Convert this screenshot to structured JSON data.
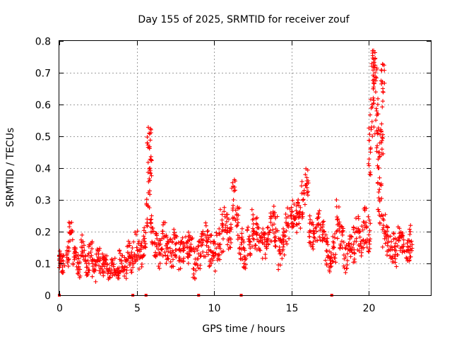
{
  "chart_data": {
    "type": "scatter",
    "title": "Day 155 of 2025, SRMTID for receiver zouf",
    "xlabel": "GPS time / hours",
    "ylabel": "SRMTID / TECUs",
    "xlim": [
      0,
      24
    ],
    "ylim": [
      0,
      0.8
    ],
    "xticks": [
      "0",
      "5",
      "10",
      "15",
      "20"
    ],
    "xtick_values": [
      0,
      5,
      10,
      15,
      20
    ],
    "yticks": [
      "0",
      "0.1",
      "0.2",
      "0.3",
      "0.4",
      "0.5",
      "0.6",
      "0.7",
      "0.8"
    ],
    "ytick_values": [
      0,
      0.1,
      0.2,
      0.3,
      0.4,
      0.5,
      0.6,
      0.7,
      0.8
    ],
    "grid": true,
    "marker": "+",
    "color": "#ff0000",
    "series": [
      {
        "name": "SRMTID",
        "x": [
          0.0,
          0.25,
          0.5,
          0.75,
          1.0,
          1.25,
          1.5,
          1.75,
          2.0,
          2.25,
          2.5,
          2.75,
          3.0,
          3.25,
          3.5,
          3.75,
          4.0,
          4.25,
          4.5,
          4.75,
          5.0,
          5.25,
          5.5,
          5.75,
          5.8,
          5.85,
          6.0,
          6.25,
          6.5,
          6.75,
          7.0,
          7.25,
          7.5,
          7.75,
          8.0,
          8.25,
          8.5,
          8.75,
          9.0,
          9.25,
          9.5,
          9.75,
          10.0,
          10.25,
          10.5,
          10.75,
          11.0,
          11.25,
          11.5,
          11.75,
          12.0,
          12.25,
          12.5,
          12.75,
          13.0,
          13.25,
          13.5,
          13.75,
          14.0,
          14.25,
          14.5,
          14.75,
          15.0,
          15.25,
          15.5,
          15.75,
          16.0,
          16.25,
          16.5,
          16.75,
          17.0,
          17.25,
          17.5,
          17.75,
          18.0,
          18.25,
          18.5,
          18.75,
          19.0,
          19.25,
          19.5,
          19.75,
          20.0,
          20.1,
          20.2,
          20.3,
          20.4,
          20.5,
          20.6,
          20.7,
          20.8,
          20.9,
          21.0,
          21.25,
          21.5,
          21.75,
          22.0,
          22.25,
          22.5,
          22.75
        ],
        "y": [
          0.11,
          0.1,
          0.13,
          0.2,
          0.12,
          0.09,
          0.15,
          0.1,
          0.12,
          0.08,
          0.11,
          0.09,
          0.1,
          0.08,
          0.09,
          0.07,
          0.11,
          0.09,
          0.13,
          0.12,
          0.15,
          0.12,
          0.17,
          0.28,
          0.51,
          0.4,
          0.2,
          0.16,
          0.13,
          0.18,
          0.15,
          0.13,
          0.16,
          0.12,
          0.14,
          0.15,
          0.16,
          0.1,
          0.13,
          0.16,
          0.18,
          0.14,
          0.12,
          0.16,
          0.2,
          0.22,
          0.18,
          0.3,
          0.22,
          0.16,
          0.12,
          0.17,
          0.21,
          0.19,
          0.18,
          0.16,
          0.19,
          0.22,
          0.2,
          0.13,
          0.16,
          0.22,
          0.25,
          0.24,
          0.26,
          0.3,
          0.36,
          0.2,
          0.18,
          0.22,
          0.19,
          0.14,
          0.11,
          0.15,
          0.24,
          0.17,
          0.12,
          0.14,
          0.16,
          0.2,
          0.17,
          0.22,
          0.19,
          0.45,
          0.6,
          0.72,
          0.7,
          0.58,
          0.4,
          0.3,
          0.48,
          0.65,
          0.2,
          0.17,
          0.15,
          0.14,
          0.18,
          0.16,
          0.14,
          0.17
        ],
        "spread": [
          0.03,
          0.03,
          0.04,
          0.04,
          0.04,
          0.04,
          0.04,
          0.04,
          0.05,
          0.04,
          0.04,
          0.04,
          0.03,
          0.03,
          0.03,
          0.02,
          0.04,
          0.04,
          0.04,
          0.05,
          0.06,
          0.05,
          0.05,
          0.08,
          0.05,
          0.04,
          0.05,
          0.05,
          0.05,
          0.06,
          0.05,
          0.05,
          0.05,
          0.05,
          0.05,
          0.05,
          0.06,
          0.05,
          0.05,
          0.05,
          0.06,
          0.05,
          0.05,
          0.06,
          0.07,
          0.07,
          0.06,
          0.07,
          0.06,
          0.05,
          0.05,
          0.05,
          0.06,
          0.06,
          0.05,
          0.05,
          0.05,
          0.06,
          0.06,
          0.05,
          0.05,
          0.06,
          0.05,
          0.05,
          0.05,
          0.06,
          0.05,
          0.05,
          0.05,
          0.05,
          0.05,
          0.05,
          0.04,
          0.05,
          0.07,
          0.05,
          0.05,
          0.05,
          0.06,
          0.07,
          0.06,
          0.06,
          0.06,
          0.08,
          0.08,
          0.05,
          0.05,
          0.08,
          0.08,
          0.08,
          0.08,
          0.08,
          0.06,
          0.05,
          0.05,
          0.05,
          0.05,
          0.04,
          0.04,
          0.05
        ]
      }
    ],
    "zero_values_at": [
      0.0,
      4.75,
      5.6,
      9.0,
      11.75,
      17.6
    ]
  }
}
